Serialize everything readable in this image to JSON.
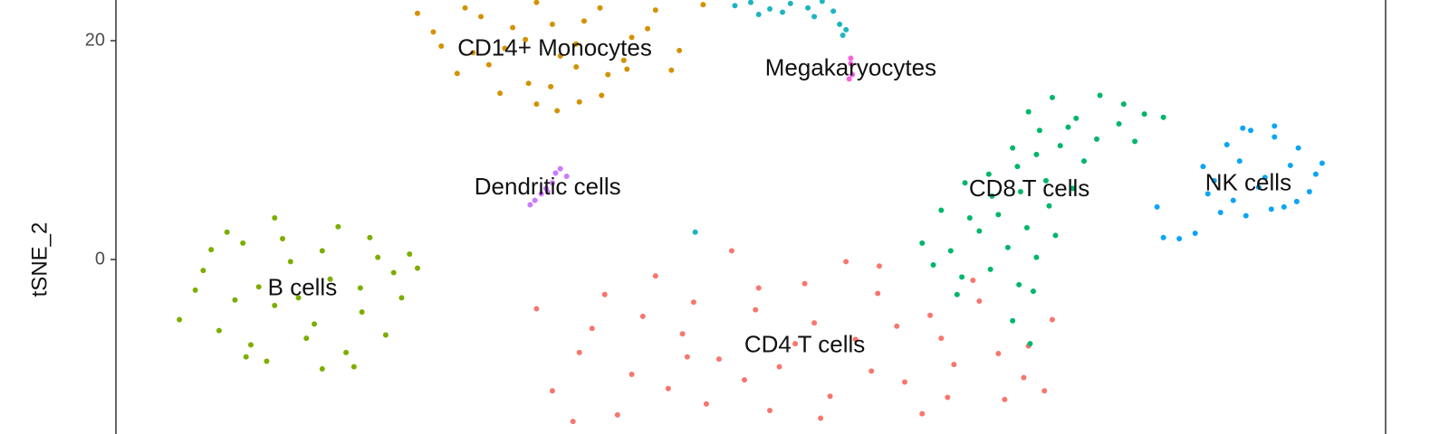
{
  "chart_data": {
    "type": "scatter",
    "ylabel": "tSNE_2",
    "xlim": [
      -40,
      40
    ],
    "ylim": [
      -15.1,
      23.7
    ],
    "yticks": [
      0,
      20
    ],
    "grid": false,
    "series": [
      {
        "name": "CD4 T cells",
        "color": "#f8766d",
        "x": [
          -12.5,
          -10.8,
          -9.2,
          -7.5,
          -6,
          -4.3,
          -2.8,
          -1.2,
          0.3,
          1.8,
          3.4,
          5,
          6.6,
          8.1,
          9.7,
          11.3,
          12.8,
          14.4,
          16,
          17.5,
          19,
          -8.4,
          -5.2,
          -2,
          1.2,
          4.4,
          7.6,
          10.8,
          14,
          17.2,
          -6.8,
          -3.6,
          -0.4,
          2.8,
          6,
          9.2,
          12.4,
          15.6,
          -4,
          0.5,
          4,
          8,
          12,
          -10,
          18.5,
          -13.5,
          -11.2
        ],
        "values": [
          -12,
          -8.5,
          -3.2,
          -10.5,
          -1.5,
          -6.8,
          -13.2,
          0.8,
          -4.6,
          -9.8,
          -2.2,
          -12.5,
          -7.3,
          -0.6,
          -11.2,
          -5.1,
          -9.6,
          -3.8,
          -12.8,
          -7.9,
          -5.5,
          -14.2,
          -11.8,
          -9.1,
          -13.8,
          -14.5,
          -10.2,
          -14.1,
          -1.9,
          -10.8,
          -5.2,
          -3.9,
          -11,
          -7.7,
          -0.2,
          -6.1,
          -12.6,
          -8.6,
          -8.9,
          -2.6,
          -5.8,
          -3.1,
          -7.2,
          -6.3,
          -12,
          -4.5,
          -14.8
        ]
      },
      {
        "name": "CD14+ Monocytes",
        "color": "#d39200",
        "x": [
          -21,
          -19.5,
          -18,
          -16.5,
          -15,
          -13.5,
          -12,
          -10.5,
          -9,
          -7.5,
          -6,
          -4.5,
          -3,
          -20,
          -18.5,
          -17,
          -15.5,
          -14,
          -12.5,
          -11,
          -9.5,
          -8,
          -6.5,
          -5,
          -17.5,
          -15.8,
          -14.2,
          -12.6,
          -11,
          -9.4,
          -7.8,
          -13.5,
          -12.2,
          -10.8
        ],
        "values": [
          22.5,
          19.5,
          23,
          17.8,
          21.2,
          23.5,
          18.6,
          21.8,
          16.9,
          20.3,
          22.8,
          19.1,
          23.3,
          20.8,
          17,
          22.2,
          19.3,
          16.1,
          21.5,
          17.6,
          23,
          18.2,
          21.1,
          17.3,
          18.9,
          15.2,
          20.1,
          15.8,
          19.7,
          15,
          17.4,
          14.2,
          13.6,
          14.4
        ]
      },
      {
        "name": "B cells",
        "color": "#7cae00",
        "x": [
          -36,
          -34.5,
          -33,
          -31.5,
          -30,
          -28.5,
          -27,
          -25.5,
          -24,
          -22.5,
          -21,
          -35,
          -33.5,
          -32,
          -30.5,
          -29,
          -27.5,
          -26,
          -24.5,
          -23,
          -21.5,
          -34,
          -32.5,
          -31,
          -29.5,
          -28,
          -26.5,
          -25,
          -23.5,
          -22,
          -30,
          -27,
          -24.6,
          -31.8
        ],
        "values": [
          -5.5,
          -1,
          2.5,
          -7.8,
          3.8,
          -3.5,
          0.8,
          -8.5,
          2,
          -1.2,
          -0.8,
          -2.8,
          -6.5,
          1.5,
          -9.3,
          -0.2,
          -5.9,
          3,
          -4.8,
          -6.9,
          0.5,
          0.9,
          -3.7,
          -2.5,
          1.9,
          -7.2,
          -1.8,
          -9.8,
          0.2,
          -3.5,
          -4.2,
          -10,
          -2.6,
          -8.9
        ]
      },
      {
        "name": "CD8 T cells",
        "color": "#00b66a",
        "x": [
          17.5,
          19,
          20.5,
          22,
          23.5,
          24.8,
          18.2,
          20,
          21.8,
          23.2,
          16.5,
          18,
          19.5,
          21,
          15,
          16.8,
          18.6,
          20.3,
          13.5,
          15.2,
          17,
          18.8,
          12,
          13.8,
          15.6,
          17.4,
          19.2,
          10.8,
          12.6,
          14.4,
          16.2,
          18,
          11.5,
          13.3,
          15.1,
          16.9,
          26,
          24.2,
          17.8,
          13,
          17.6,
          16.5
        ],
        "values": [
          13.5,
          14.8,
          12.9,
          15,
          14.2,
          13.3,
          11.8,
          12.1,
          11,
          12.4,
          10.2,
          9.6,
          10.4,
          9,
          7.8,
          8.5,
          7.2,
          6.5,
          7,
          5.8,
          6.2,
          4.9,
          4.5,
          3.8,
          4.1,
          2.9,
          2.2,
          1.5,
          0.8,
          2.6,
          1.1,
          0.2,
          -0.5,
          -1.6,
          -0.9,
          -2.3,
          13,
          10.8,
          -2.9,
          -3.2,
          -7.7,
          -5.6
        ]
      },
      {
        "name": null,
        "color": "#1cb5c0",
        "x": [
          -1,
          0,
          1.2,
          2.5,
          3.6,
          4.5,
          5.2,
          0.5,
          2,
          4,
          5.6,
          6,
          5.8,
          -3.5
        ],
        "values": [
          23.2,
          23.5,
          22.9,
          23.4,
          23,
          23.6,
          22.7,
          22.4,
          22.6,
          22.2,
          21.5,
          21,
          20.5,
          2.5
        ]
      },
      {
        "name": "NK cells",
        "color": "#0aa6f4",
        "x": [
          28.5,
          30,
          31.5,
          33,
          34.5,
          36,
          29.2,
          30.8,
          32.4,
          34,
          35.6,
          28.8,
          30.4,
          32,
          33.6,
          35.2,
          29.6,
          31.2,
          32.8,
          34.4,
          31,
          33,
          26,
          27,
          28,
          25.6
        ],
        "values": [
          8.5,
          10.5,
          11.8,
          11.2,
          10.2,
          8.8,
          7.2,
          9,
          7.5,
          8.6,
          7.8,
          6,
          5.4,
          6.6,
          4.8,
          6.2,
          4.3,
          4,
          4.6,
          5.3,
          12,
          12.2,
          2,
          1.9,
          2.4,
          4.8
        ]
      },
      {
        "name": "Dendritic cells",
        "color": "#c77cff",
        "x": [
          -13.9,
          -13.6,
          -13.2,
          -12.9,
          -12.5,
          -12.3,
          -12,
          -11.6,
          -12.8
        ],
        "values": [
          5,
          5.4,
          6,
          6.5,
          7,
          7.9,
          8.3,
          7.6,
          6.2
        ]
      },
      {
        "name": "Megakaryocytes",
        "color": "#f564e3",
        "x": [
          6.3,
          6.3,
          6.4,
          6.2
        ],
        "values": [
          18.4,
          17.9,
          16.9,
          16.5
        ]
      }
    ]
  }
}
